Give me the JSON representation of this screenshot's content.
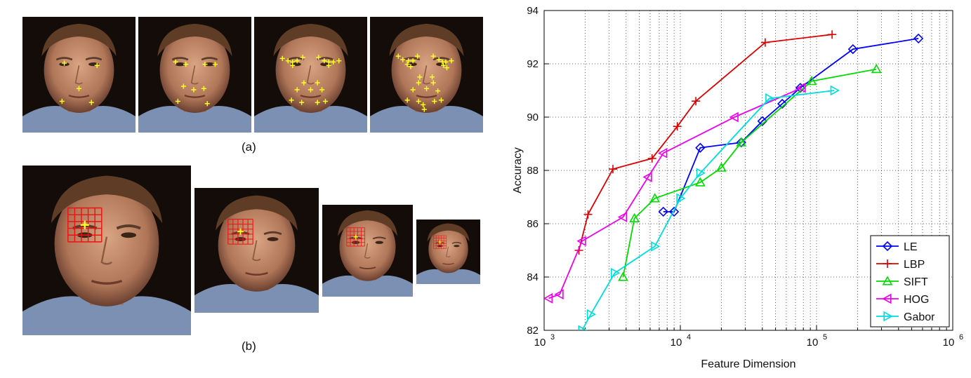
{
  "panels": {
    "a_label": "(a)",
    "b_label": "(b)",
    "landmark_color": "#ffff22",
    "grid_color": "#ee1111"
  },
  "chart_data": {
    "type": "line",
    "title": "",
    "xlabel": "Feature Dimension",
    "ylabel": "Accuracy",
    "x_scale": "log",
    "xlim": [
      1000,
      1000000
    ],
    "ylim": [
      82,
      94
    ],
    "x_ticks": [
      {
        "value": 1000,
        "base": "10",
        "exp": "3"
      },
      {
        "value": 10000,
        "base": "10",
        "exp": "4"
      },
      {
        "value": 100000,
        "base": "10",
        "exp": "5"
      },
      {
        "value": 1000000,
        "base": "10",
        "exp": "6"
      }
    ],
    "y_ticks": [
      "82",
      "84",
      "86",
      "88",
      "90",
      "92",
      "94"
    ],
    "grid": true,
    "legend_position": "bottom-right",
    "series": [
      {
        "name": "LE",
        "color": "#0000ff",
        "marker": "diamond",
        "points": [
          [
            7500,
            86.45
          ],
          [
            9000,
            86.45
          ],
          [
            14000,
            88.85
          ],
          [
            28000,
            89.05
          ],
          [
            40000,
            89.85
          ],
          [
            56000,
            90.5
          ],
          [
            76000,
            91.1
          ],
          [
            185000,
            92.55
          ],
          [
            560000,
            92.95
          ]
        ]
      },
      {
        "name": "LBP",
        "color": "#dd0000",
        "marker": "plus",
        "points": [
          [
            1800,
            85.0
          ],
          [
            2100,
            86.35
          ],
          [
            3200,
            88.05
          ],
          [
            6200,
            88.45
          ],
          [
            9500,
            89.65
          ],
          [
            13000,
            90.6
          ],
          [
            42000,
            92.8
          ],
          [
            130000,
            93.1
          ]
        ]
      },
      {
        "name": "SIFT",
        "color": "#00dd00",
        "marker": "triangle-up",
        "points": [
          [
            3800,
            84.0
          ],
          [
            4600,
            86.2
          ],
          [
            6500,
            86.95
          ],
          [
            14000,
            87.55
          ],
          [
            20000,
            88.1
          ],
          [
            28000,
            89.05
          ],
          [
            92000,
            91.35
          ],
          [
            275000,
            91.8
          ]
        ]
      },
      {
        "name": "HOG",
        "color": "#ee00ee",
        "marker": "triangle-left",
        "points": [
          [
            1080,
            83.2
          ],
          [
            1300,
            83.35
          ],
          [
            1900,
            85.35
          ],
          [
            3800,
            86.25
          ],
          [
            5800,
            87.75
          ],
          [
            7500,
            88.65
          ],
          [
            25000,
            90.0
          ],
          [
            78000,
            91.1
          ]
        ]
      },
      {
        "name": "Gabor",
        "color": "#00dddd",
        "marker": "triangle-right",
        "points": [
          [
            1900,
            82.0
          ],
          [
            2200,
            82.6
          ],
          [
            3300,
            84.15
          ],
          [
            6500,
            85.15
          ],
          [
            10000,
            86.95
          ],
          [
            14000,
            87.9
          ],
          [
            45000,
            90.7
          ],
          [
            135000,
            91.0
          ]
        ]
      }
    ]
  }
}
